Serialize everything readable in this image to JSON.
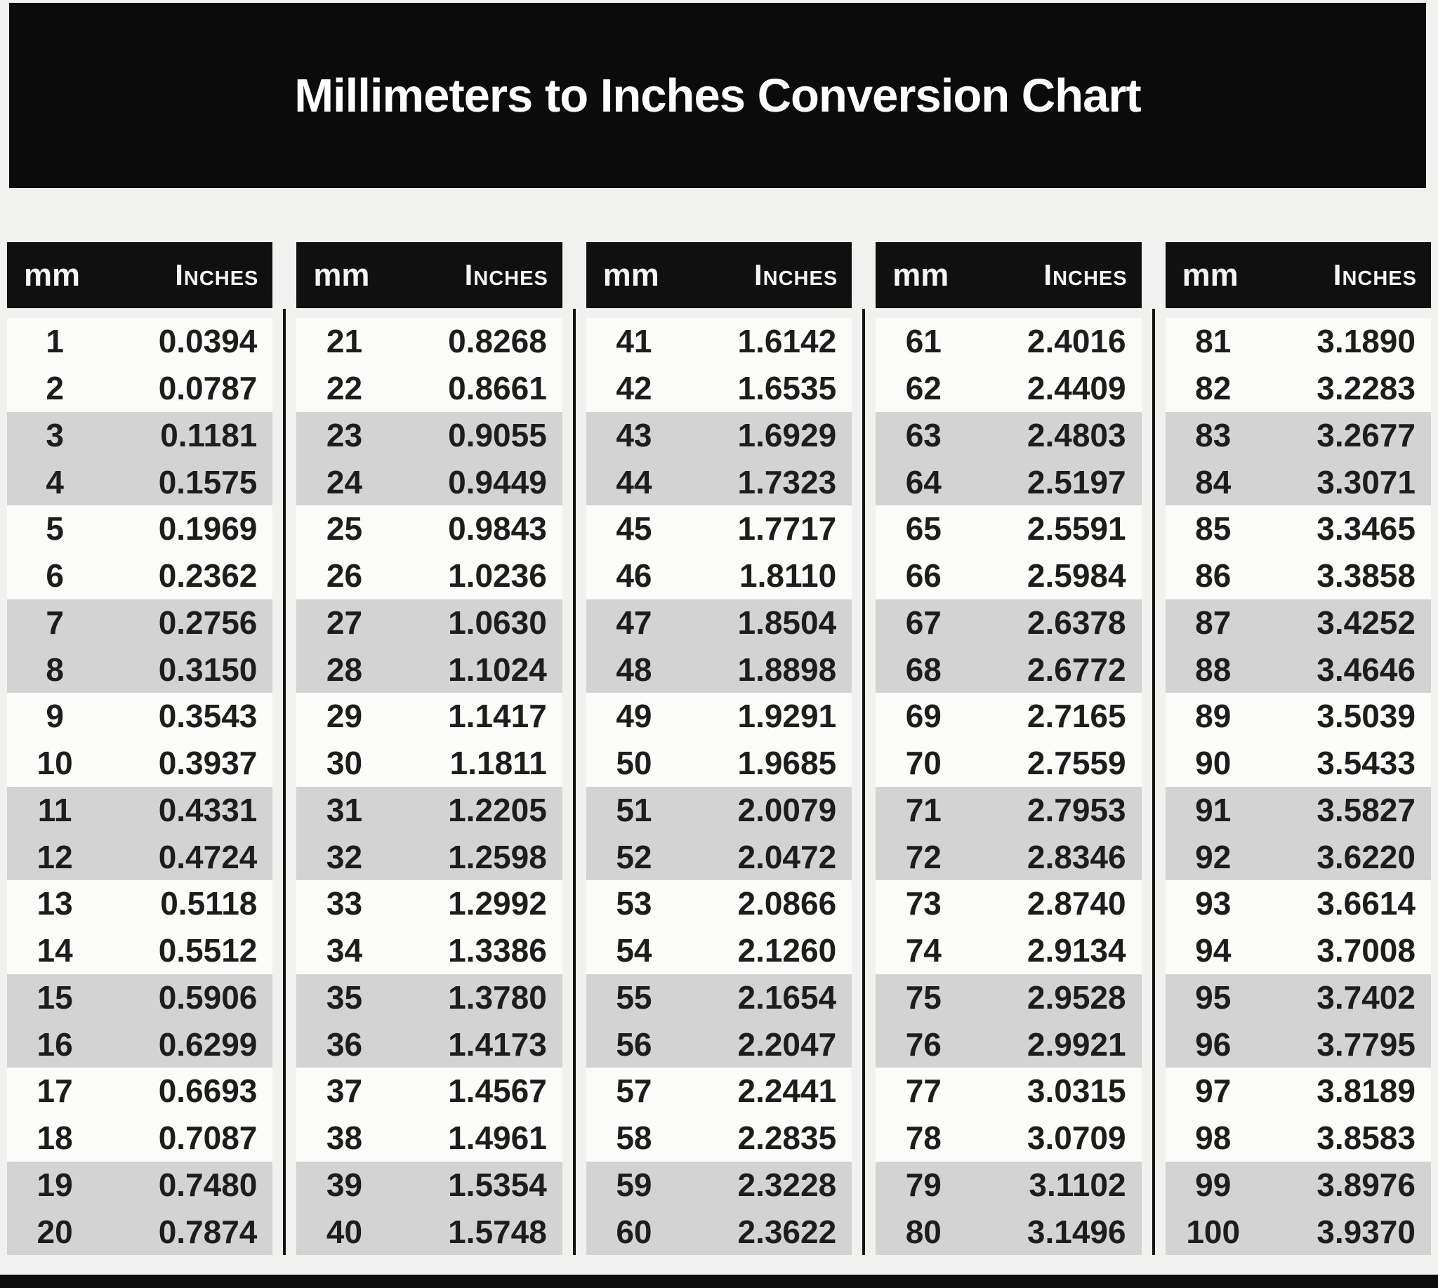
{
  "title": "Millimeters to Inches Conversion Chart",
  "column_headers": {
    "mm": "mm",
    "inches": "Inches"
  },
  "chart_data": {
    "type": "table",
    "title": "Millimeters to Inches Conversion Chart",
    "columns": [
      "mm",
      "Inches"
    ],
    "layout": {
      "table_blocks": 5,
      "rows_per_block": 20,
      "row_shading": "rows alternate in pairs: two light rows then two gray rows",
      "legend_position": "none",
      "grid": false
    },
    "rows": [
      [
        "1",
        "0.0394"
      ],
      [
        "2",
        "0.0787"
      ],
      [
        "3",
        "0.1181"
      ],
      [
        "4",
        "0.1575"
      ],
      [
        "5",
        "0.1969"
      ],
      [
        "6",
        "0.2362"
      ],
      [
        "7",
        "0.2756"
      ],
      [
        "8",
        "0.3150"
      ],
      [
        "9",
        "0.3543"
      ],
      [
        "10",
        "0.3937"
      ],
      [
        "11",
        "0.4331"
      ],
      [
        "12",
        "0.4724"
      ],
      [
        "13",
        "0.5118"
      ],
      [
        "14",
        "0.5512"
      ],
      [
        "15",
        "0.5906"
      ],
      [
        "16",
        "0.6299"
      ],
      [
        "17",
        "0.6693"
      ],
      [
        "18",
        "0.7087"
      ],
      [
        "19",
        "0.7480"
      ],
      [
        "20",
        "0.7874"
      ],
      [
        "21",
        "0.8268"
      ],
      [
        "22",
        "0.8661"
      ],
      [
        "23",
        "0.9055"
      ],
      [
        "24",
        "0.9449"
      ],
      [
        "25",
        "0.9843"
      ],
      [
        "26",
        "1.0236"
      ],
      [
        "27",
        "1.0630"
      ],
      [
        "28",
        "1.1024"
      ],
      [
        "29",
        "1.1417"
      ],
      [
        "30",
        "1.1811"
      ],
      [
        "31",
        "1.2205"
      ],
      [
        "32",
        "1.2598"
      ],
      [
        "33",
        "1.2992"
      ],
      [
        "34",
        "1.3386"
      ],
      [
        "35",
        "1.3780"
      ],
      [
        "36",
        "1.4173"
      ],
      [
        "37",
        "1.4567"
      ],
      [
        "38",
        "1.4961"
      ],
      [
        "39",
        "1.5354"
      ],
      [
        "40",
        "1.5748"
      ],
      [
        "41",
        "1.6142"
      ],
      [
        "42",
        "1.6535"
      ],
      [
        "43",
        "1.6929"
      ],
      [
        "44",
        "1.7323"
      ],
      [
        "45",
        "1.7717"
      ],
      [
        "46",
        "1.8110"
      ],
      [
        "47",
        "1.8504"
      ],
      [
        "48",
        "1.8898"
      ],
      [
        "49",
        "1.9291"
      ],
      [
        "50",
        "1.9685"
      ],
      [
        "51",
        "2.0079"
      ],
      [
        "52",
        "2.0472"
      ],
      [
        "53",
        "2.0866"
      ],
      [
        "54",
        "2.1260"
      ],
      [
        "55",
        "2.1654"
      ],
      [
        "56",
        "2.2047"
      ],
      [
        "57",
        "2.2441"
      ],
      [
        "58",
        "2.2835"
      ],
      [
        "59",
        "2.3228"
      ],
      [
        "60",
        "2.3622"
      ],
      [
        "61",
        "2.4016"
      ],
      [
        "62",
        "2.4409"
      ],
      [
        "63",
        "2.4803"
      ],
      [
        "64",
        "2.5197"
      ],
      [
        "65",
        "2.5591"
      ],
      [
        "66",
        "2.5984"
      ],
      [
        "67",
        "2.6378"
      ],
      [
        "68",
        "2.6772"
      ],
      [
        "69",
        "2.7165"
      ],
      [
        "70",
        "2.7559"
      ],
      [
        "71",
        "2.7953"
      ],
      [
        "72",
        "2.8346"
      ],
      [
        "73",
        "2.8740"
      ],
      [
        "74",
        "2.9134"
      ],
      [
        "75",
        "2.9528"
      ],
      [
        "76",
        "2.9921"
      ],
      [
        "77",
        "3.0315"
      ],
      [
        "78",
        "3.0709"
      ],
      [
        "79",
        "3.1102"
      ],
      [
        "80",
        "3.1496"
      ],
      [
        "81",
        "3.1890"
      ],
      [
        "82",
        "3.2283"
      ],
      [
        "83",
        "3.2677"
      ],
      [
        "84",
        "3.3071"
      ],
      [
        "85",
        "3.3465"
      ],
      [
        "86",
        "3.3858"
      ],
      [
        "87",
        "3.4252"
      ],
      [
        "88",
        "3.4646"
      ],
      [
        "89",
        "3.5039"
      ],
      [
        "90",
        "3.5433"
      ],
      [
        "91",
        "3.5827"
      ],
      [
        "92",
        "3.6220"
      ],
      [
        "93",
        "3.6614"
      ],
      [
        "94",
        "3.7008"
      ],
      [
        "95",
        "3.7402"
      ],
      [
        "96",
        "3.7795"
      ],
      [
        "97",
        "3.8189"
      ],
      [
        "98",
        "3.8583"
      ],
      [
        "99",
        "3.8976"
      ],
      [
        "100",
        "3.9370"
      ]
    ]
  },
  "colors": {
    "page_bg": "#f1f1f0",
    "banner_bg": "#0b0b0b",
    "banner_text": "#ffffff",
    "header_bg": "#101010",
    "header_text": "#f4f4f4",
    "row_white": "#fbfbfa",
    "row_gray": "#d3d3d3",
    "divider": "#141414",
    "value_text": "#1d1d1d",
    "bottom_bar": "#0d0d0d"
  }
}
